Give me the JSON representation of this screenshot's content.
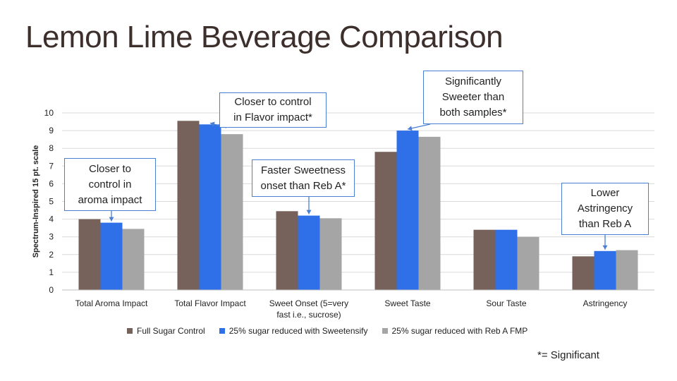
{
  "slide": {
    "title": "Lemon Lime Beverage Comparison",
    "footnote": "*= Significant"
  },
  "chart_data": {
    "type": "bar",
    "title": "",
    "xlabel": "",
    "ylabel": "Spectrum-Inspired 15 pt. scale",
    "ylim": [
      0,
      10
    ],
    "yticks": [
      0,
      1,
      2,
      3,
      4,
      5,
      6,
      7,
      8,
      9,
      10
    ],
    "grid": true,
    "legend_position": "bottom",
    "categories": [
      "Total Aroma Impact",
      "Total Flavor Impact",
      "Sweet Onset (5=very fast i.e., sucrose)",
      "Sweet Taste",
      "Sour Taste",
      "Astringency"
    ],
    "category_lines": [
      [
        "Total Aroma Impact"
      ],
      [
        "Total Flavor Impact"
      ],
      [
        "Sweet Onset (5=very",
        "fast i.e., sucrose)"
      ],
      [
        "Sweet Taste"
      ],
      [
        "Sour Taste"
      ],
      [
        "Astringency"
      ]
    ],
    "series": [
      {
        "name": "Full Sugar Control",
        "color": "#76625a",
        "values": [
          4.0,
          9.55,
          4.45,
          7.8,
          3.4,
          1.9
        ]
      },
      {
        "name": "25% sugar reduced with Sweetensify",
        "color": "#2f6fe8",
        "values": [
          3.8,
          9.35,
          4.2,
          9.0,
          3.4,
          2.2
        ]
      },
      {
        "name": "25% sugar reduced with Reb A FMP",
        "color": "#a5a5a5",
        "values": [
          3.45,
          8.8,
          4.05,
          8.65,
          3.0,
          2.25
        ]
      }
    ],
    "annotations": [
      {
        "text": "Closer to control in aroma impact",
        "lines": [
          "Closer to",
          "control in",
          "aroma impact"
        ],
        "category": 0,
        "series": 1
      },
      {
        "text": "Closer to control in Flavor impact*",
        "lines": [
          "Closer to control",
          "in Flavor impact*"
        ],
        "category": 1,
        "series": 1
      },
      {
        "text": "Faster Sweetness onset than Reb A*",
        "lines": [
          "Faster Sweetness",
          "onset than Reb A*"
        ],
        "category": 2,
        "series": 1
      },
      {
        "text": "Significantly Sweeter than both samples*",
        "lines": [
          "Significantly",
          "Sweeter than",
          "both samples*"
        ],
        "category": 3,
        "series": 1
      },
      {
        "text": "Lower Astringency than Reb A",
        "lines": [
          "Lower",
          "Astringency",
          "than Reb A"
        ],
        "category": 5,
        "series": 1
      }
    ]
  }
}
